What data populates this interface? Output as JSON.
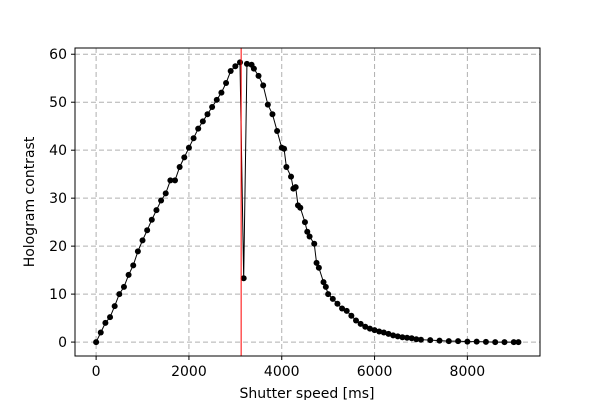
{
  "chart_data": {
    "type": "line",
    "xlabel": "Shutter speed [ms]",
    "ylabel": "Hologram contrast",
    "x": [
      0,
      100,
      200,
      300,
      400,
      500,
      600,
      700,
      800,
      900,
      1000,
      1100,
      1200,
      1300,
      1400,
      1500,
      1600,
      1700,
      1800,
      1900,
      2000,
      2100,
      2200,
      2300,
      2400,
      2500,
      2600,
      2700,
      2800,
      2900,
      3000,
      3100,
      3180,
      3250,
      3350,
      3400,
      3500,
      3600,
      3700,
      3800,
      3900,
      4000,
      4050,
      4100,
      4200,
      4250,
      4300,
      4350,
      4400,
      4500,
      4550,
      4600,
      4700,
      4750,
      4800,
      4900,
      4950,
      5000,
      5100,
      5200,
      5300,
      5400,
      5500,
      5600,
      5700,
      5800,
      5900,
      6000,
      6100,
      6200,
      6300,
      6400,
      6500,
      6600,
      6700,
      6800,
      6900,
      7000,
      7200,
      7400,
      7600,
      7800,
      8000,
      8200,
      8400,
      8600,
      8800,
      9000,
      9100
    ],
    "series": [
      {
        "color": "#000000",
        "values": [
          0,
          2,
          4,
          5.2,
          7.5,
          10,
          11.5,
          14,
          16,
          18.9,
          21.2,
          23.3,
          25.5,
          27.5,
          29.5,
          31,
          33.7,
          33.7,
          36.5,
          38.5,
          40.5,
          42.5,
          44.5,
          46,
          47.5,
          49,
          50.5,
          52,
          54,
          56.5,
          57.5,
          58.3,
          13.3,
          58,
          57.8,
          57,
          55.5,
          53.5,
          49.5,
          47.5,
          44,
          40.5,
          40.3,
          36.5,
          34.5,
          32,
          32.3,
          28.5,
          28,
          25,
          23,
          22,
          20.5,
          16.5,
          15.5,
          12.5,
          11.5,
          10,
          9,
          8,
          7,
          6.5,
          5.5,
          4.5,
          3.8,
          3.2,
          2.8,
          2.5,
          2.2,
          2,
          1.7,
          1.4,
          1.2,
          1,
          0.9,
          0.8,
          0.6,
          0.5,
          0.4,
          0.3,
          0.2,
          0.2,
          0.1,
          0.1,
          0.05,
          0,
          0,
          0,
          0
        ]
      }
    ],
    "xlim": [
      -455,
      9565
    ],
    "ylim": [
      -2.9,
      61.3
    ],
    "xticks": [
      0,
      2000,
      4000,
      6000,
      8000
    ],
    "yticks": [
      0,
      10,
      20,
      30,
      40,
      50,
      60
    ],
    "grid": true,
    "vline": {
      "x": 3125,
      "color": "#ff0000"
    }
  }
}
